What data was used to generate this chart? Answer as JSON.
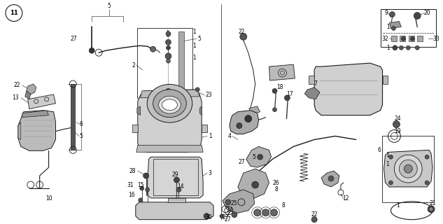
{
  "background_color": "#ffffff",
  "line_color": "#1a1a1a",
  "text_color": "#000000",
  "fig_width": 6.33,
  "fig_height": 3.2,
  "dpi": 100,
  "diagram_number": "11"
}
